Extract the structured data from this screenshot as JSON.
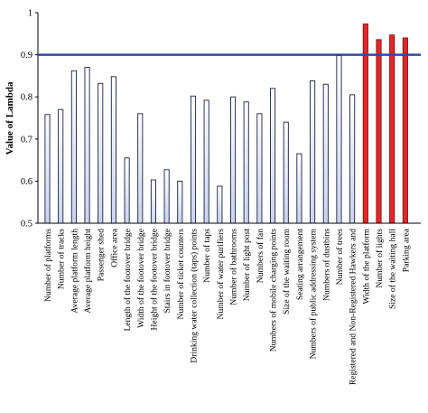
{
  "chart_data": {
    "type": "bar",
    "ylabel": "Value of Lambda",
    "xlabel": "",
    "title": "",
    "ylim": [
      0.5,
      1.0
    ],
    "yticks": [
      "0.5",
      "0.6",
      "0.7",
      "0.8",
      "0.9",
      "1"
    ],
    "threshold": 0.9,
    "grid": false,
    "colors": {
      "normal_fill_top": "#ffffff",
      "normal_fill_bottom": "#c9d3ee",
      "normal_stroke": "#1a2040",
      "highlight_fill": "#e8252a",
      "highlight_stroke": "#7a1010",
      "threshold_line": "#3346a8"
    },
    "categories": [
      "Number of platforms",
      "Number of tracks",
      "Average platform length",
      "Average platform height",
      "Passenger shed",
      "Office area",
      "Length of the footover bridge",
      "Width of the footover bridge",
      "Height of the footover bridge",
      "Stairs in footover bridge",
      "Number of ticket counters",
      "Drinking water collection (taps) points",
      "Number of taps",
      "Number of water purifiers",
      "Number of bathrooms",
      "Number of light post",
      "Numbers of fan",
      "Numbers of mobile charging points",
      "Size of the waiting room",
      "Seating arrangement",
      "Numbers of public addressing system",
      "Numbers of dustbins",
      "Number of trees",
      "Registered and Non-Registered Hawkers and",
      "Width of the platform",
      "Number of lights",
      "Size of the waiting hall",
      "Parking area"
    ],
    "values": [
      0.758,
      0.77,
      0.862,
      0.87,
      0.832,
      0.848,
      0.655,
      0.76,
      0.603,
      0.627,
      0.6,
      0.802,
      0.792,
      0.588,
      0.8,
      0.788,
      0.76,
      0.82,
      0.74,
      0.665,
      0.838,
      0.83,
      0.898,
      0.805,
      0.973,
      0.936,
      0.947,
      0.94
    ],
    "highlighted": [
      false,
      false,
      false,
      false,
      false,
      false,
      false,
      false,
      false,
      false,
      false,
      false,
      false,
      false,
      false,
      false,
      false,
      false,
      false,
      false,
      false,
      false,
      false,
      false,
      true,
      true,
      true,
      true
    ]
  }
}
